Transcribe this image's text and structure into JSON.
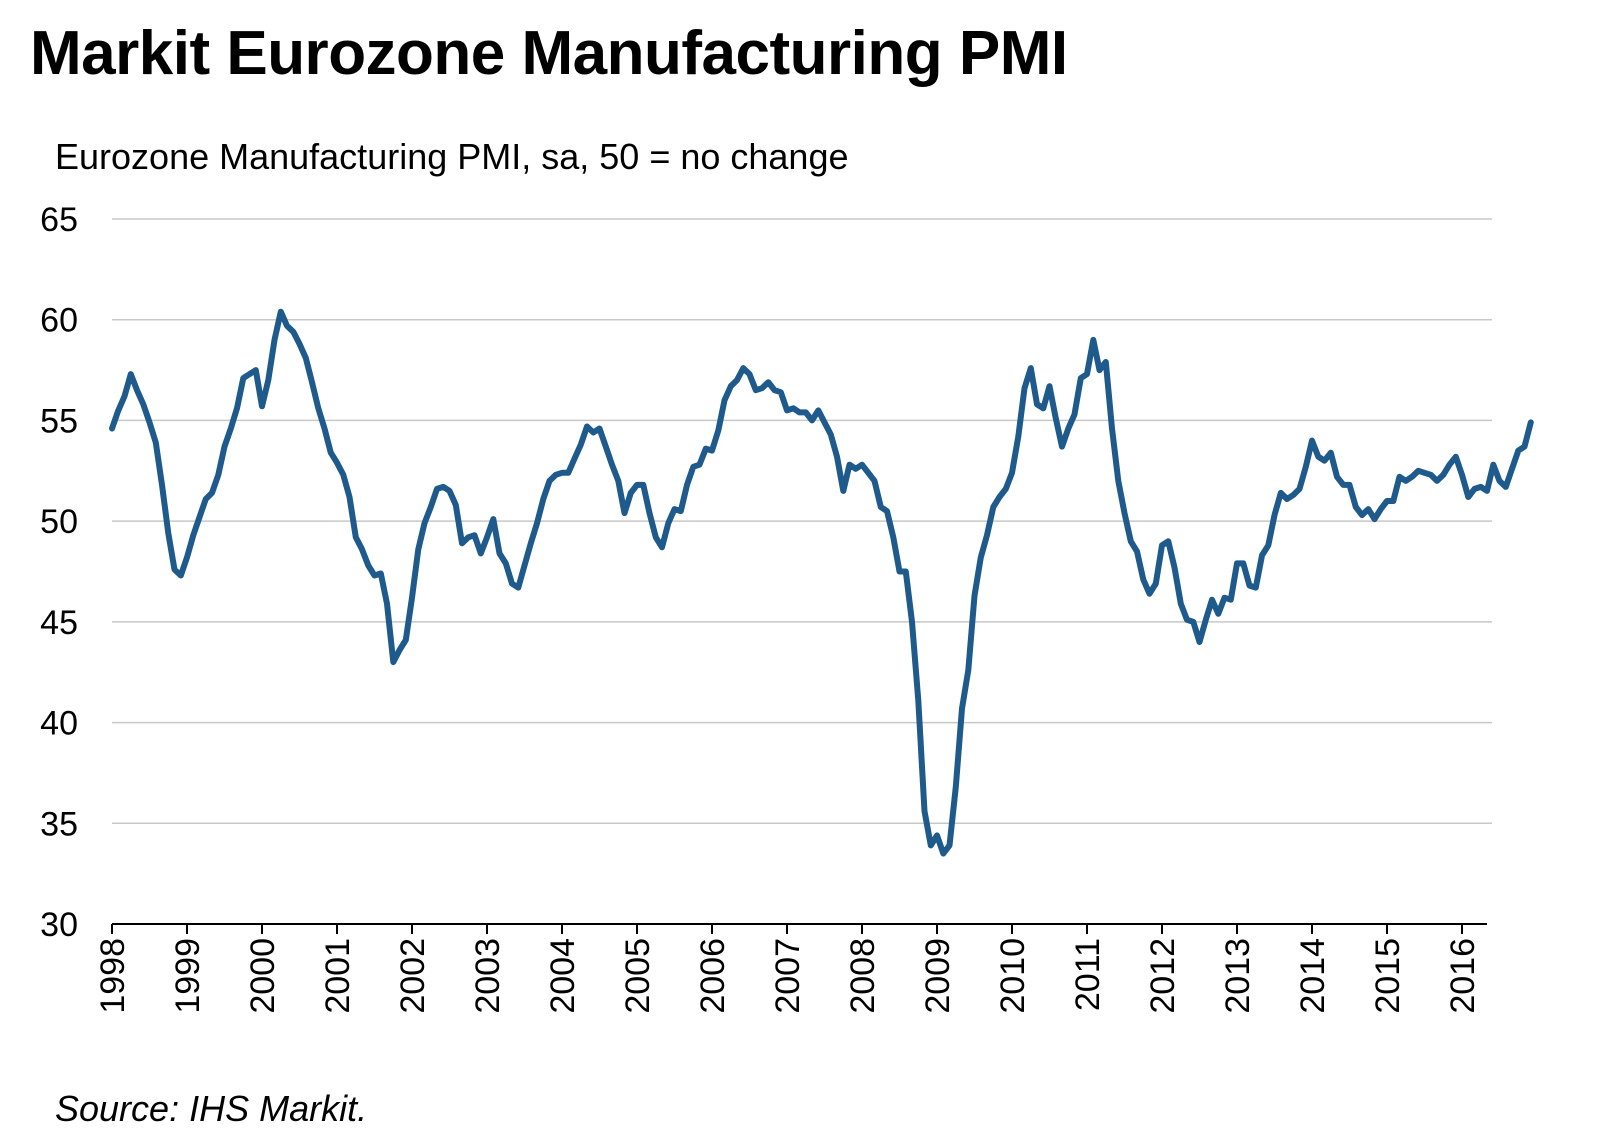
{
  "page": {
    "title": "Markit Eurozone Manufacturing PMI",
    "subtitle": "Eurozone Manufacturing PMI, sa, 50 = no change",
    "source": "Source: IHS Markit."
  },
  "chart_data": {
    "type": "line",
    "title": "Markit Eurozone Manufacturing PMI",
    "subtitle": "Eurozone Manufacturing PMI, sa, 50 = no change",
    "xlabel": "",
    "ylabel": "",
    "ylim": [
      30,
      65
    ],
    "yticks": [
      "30",
      "35",
      "40",
      "45",
      "50",
      "55",
      "60",
      "65"
    ],
    "xticks": [
      "1998",
      "1999",
      "2000",
      "2001",
      "2002",
      "2003",
      "2004",
      "2005",
      "2006",
      "2007",
      "2008",
      "2009",
      "2010",
      "2011",
      "2012",
      "2013",
      "2014",
      "2015",
      "2016"
    ],
    "grid": "horizontal",
    "line_color": "#1f5a8c",
    "series": [
      {
        "x_start": "1998-01",
        "frequency": "monthly",
        "values": [
          54.6,
          55.5,
          56.2,
          57.3,
          56.5,
          55.8,
          54.9,
          53.9,
          51.8,
          49.4,
          47.6,
          47.3,
          48.2,
          49.3,
          50.2,
          51.1,
          51.4,
          52.3,
          53.7,
          54.6,
          55.6,
          57.1,
          57.3,
          57.5,
          55.7,
          57.0,
          59.0,
          60.4,
          59.7,
          59.4,
          58.8,
          58.1,
          56.9,
          55.6,
          54.6,
          53.4,
          52.9,
          52.3,
          51.2,
          49.2,
          48.6,
          47.8,
          47.3,
          47.4,
          45.9,
          43.0,
          43.6,
          44.1,
          46.2,
          48.6,
          49.9,
          50.7,
          51.6,
          51.7,
          51.5,
          50.8,
          48.9,
          49.2,
          49.3,
          48.4,
          49.2,
          50.1,
          48.4,
          47.9,
          46.9,
          46.7,
          47.8,
          48.9,
          49.9,
          51.1,
          52.0,
          52.3,
          52.4,
          52.4,
          53.1,
          53.8,
          54.7,
          54.4,
          54.6,
          53.7,
          52.8,
          52.0,
          50.4,
          51.4,
          51.8,
          51.8,
          50.4,
          49.2,
          48.7,
          49.9,
          50.6,
          50.5,
          51.8,
          52.7,
          52.8,
          53.6,
          53.5,
          54.5,
          56.0,
          56.7,
          57.0,
          57.6,
          57.3,
          56.5,
          56.6,
          56.9,
          56.5,
          56.4,
          55.5,
          55.6,
          55.4,
          55.4,
          55.0,
          55.5,
          54.9,
          54.3,
          53.2,
          51.5,
          52.8,
          52.6,
          52.8,
          52.4,
          52.0,
          50.7,
          50.5,
          49.2,
          47.5,
          47.5,
          45.0,
          41.1,
          35.6,
          33.9,
          34.4,
          33.5,
          33.9,
          36.8,
          40.7,
          42.6,
          46.3,
          48.2,
          49.3,
          50.7,
          51.2,
          51.6,
          52.4,
          54.2,
          56.6,
          57.6,
          55.8,
          55.6,
          56.7,
          55.1,
          53.7,
          54.6,
          55.3,
          57.1,
          57.3,
          59.0,
          57.5,
          57.9,
          54.6,
          52.0,
          50.4,
          49.0,
          48.5,
          47.1,
          46.4,
          46.9,
          48.8,
          49.0,
          47.7,
          45.9,
          45.1,
          45.0,
          44.0,
          45.1,
          46.1,
          45.4,
          46.2,
          46.1,
          47.9,
          47.9,
          46.8,
          46.7,
          48.3,
          48.8,
          50.3,
          51.4,
          51.1,
          51.3,
          51.6,
          52.7,
          54.0,
          53.2,
          53.0,
          53.4,
          52.2,
          51.8,
          51.8,
          50.7,
          50.3,
          50.6,
          50.1,
          50.6,
          51.0,
          51.0,
          52.2,
          52.0,
          52.2,
          52.5,
          52.4,
          52.3,
          52.0,
          52.3,
          52.8,
          53.2,
          52.3,
          51.2,
          51.6,
          51.7,
          51.5,
          52.8,
          52.0,
          51.7,
          52.6,
          53.5,
          53.7,
          54.9
        ]
      }
    ]
  }
}
